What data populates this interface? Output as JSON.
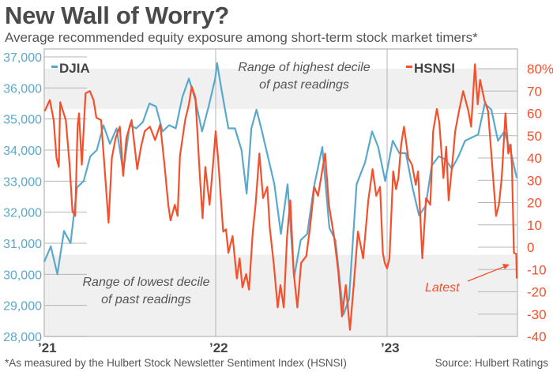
{
  "title": "New Wall of Worry?",
  "subtitle": "Average recommended equity exposure among short-term stock market timers*",
  "footnote": "*As measured by the Hulbert Stock Newsletter Sentiment Index (HSNSI)",
  "source": "Source: Hulbert Ratings",
  "colors": {
    "djia": "#5aa9cc",
    "hsnsi": "#f4502c",
    "band": "#f0f0f0",
    "grid": "#b5b5b5"
  },
  "chart_data": {
    "type": "line",
    "x_ticks": [
      {
        "date": "2021-01-01",
        "label": "’21"
      },
      {
        "date": "2022-01-01",
        "label": "’22"
      },
      {
        "date": "2023-01-01",
        "label": "’23"
      }
    ],
    "x_range": [
      "2021-01-01",
      "2023-10-06"
    ],
    "left_axis": {
      "series": "DJIA",
      "range": [
        28000,
        37000
      ],
      "ticks": [
        {
          "v": 37000,
          "label": "37,000"
        },
        {
          "v": 36000,
          "label": "36,000"
        },
        {
          "v": 35000,
          "label": "35,000"
        },
        {
          "v": 34000,
          "label": "34,000"
        },
        {
          "v": 33000,
          "label": "33,000"
        },
        {
          "v": 32000,
          "label": "32,000"
        },
        {
          "v": 31000,
          "label": "31,000"
        },
        {
          "v": 30000,
          "label": "30,000"
        },
        {
          "v": 29000,
          "label": "29,000"
        },
        {
          "v": 28000,
          "label": "28,000"
        }
      ]
    },
    "right_axis": {
      "series": "HSNSI",
      "range": [
        -40,
        80
      ],
      "ticks": [
        {
          "v": 80,
          "label": "80%"
        },
        {
          "v": 70,
          "label": "70"
        },
        {
          "v": 60,
          "label": "60"
        },
        {
          "v": 50,
          "label": "50"
        },
        {
          "v": 40,
          "label": "40"
        },
        {
          "v": 30,
          "label": "30"
        },
        {
          "v": 20,
          "label": "20"
        },
        {
          "v": 10,
          "label": "10"
        },
        {
          "v": 0,
          "label": "0"
        },
        {
          "v": -10,
          "label": "-10"
        },
        {
          "v": -20,
          "label": "-20"
        },
        {
          "v": -30,
          "label": "-30"
        },
        {
          "v": -40,
          "label": "-40"
        }
      ]
    },
    "bands": [
      {
        "axis": "HSNSI",
        "from": 62,
        "to": 80,
        "label": [
          "Range of highest decile",
          "of past readings"
        ]
      },
      {
        "axis": "HSNSI",
        "from": -40,
        "to": -3.4,
        "label": [
          "Range of lowest decile",
          "of past readings"
        ]
      }
    ],
    "annotation": {
      "text": "Latest",
      "points_to": {
        "date": "2023-10-04",
        "value": -14
      }
    },
    "legend": {
      "placement": "top",
      "items": [
        "DJIA",
        "HSNSI"
      ]
    },
    "series": [
      {
        "name": "DJIA",
        "axis": "left",
        "points": [
          [
            "2021-01-01",
            30400
          ],
          [
            "2021-01-15",
            30900
          ],
          [
            "2021-01-29",
            30000
          ],
          [
            "2021-02-12",
            31400
          ],
          [
            "2021-02-26",
            31000
          ],
          [
            "2021-03-12",
            32800
          ],
          [
            "2021-03-26",
            33000
          ],
          [
            "2021-04-09",
            33800
          ],
          [
            "2021-04-23",
            34000
          ],
          [
            "2021-05-07",
            34800
          ],
          [
            "2021-05-21",
            34200
          ],
          [
            "2021-06-04",
            34700
          ],
          [
            "2021-06-18",
            33300
          ],
          [
            "2021-07-02",
            34800
          ],
          [
            "2021-07-16",
            34700
          ],
          [
            "2021-07-30",
            34900
          ],
          [
            "2021-08-13",
            35500
          ],
          [
            "2021-08-27",
            35400
          ],
          [
            "2021-09-10",
            34600
          ],
          [
            "2021-09-24",
            34800
          ],
          [
            "2021-10-08",
            34700
          ],
          [
            "2021-10-22",
            35700
          ],
          [
            "2021-11-05",
            36300
          ],
          [
            "2021-11-19",
            35600
          ],
          [
            "2021-12-03",
            34600
          ],
          [
            "2021-12-17",
            35400
          ],
          [
            "2021-12-31",
            36300
          ],
          [
            "2022-01-04",
            36800
          ],
          [
            "2022-01-14",
            35900
          ],
          [
            "2022-01-28",
            34700
          ],
          [
            "2022-02-11",
            34700
          ],
          [
            "2022-02-25",
            34000
          ],
          [
            "2022-03-08",
            32600
          ],
          [
            "2022-03-18",
            34700
          ],
          [
            "2022-03-29",
            35300
          ],
          [
            "2022-04-08",
            34700
          ],
          [
            "2022-04-22",
            33800
          ],
          [
            "2022-05-06",
            32900
          ],
          [
            "2022-05-20",
            31300
          ],
          [
            "2022-06-03",
            32900
          ],
          [
            "2022-06-17",
            29900
          ],
          [
            "2022-07-01",
            31100
          ],
          [
            "2022-07-15",
            31300
          ],
          [
            "2022-07-29",
            32800
          ],
          [
            "2022-08-16",
            34100
          ],
          [
            "2022-08-31",
            31500
          ],
          [
            "2022-09-13",
            31100
          ],
          [
            "2022-09-30",
            28700
          ],
          [
            "2022-10-12",
            29200
          ],
          [
            "2022-10-28",
            32900
          ],
          [
            "2022-11-15",
            33600
          ],
          [
            "2022-11-30",
            34600
          ],
          [
            "2022-12-13",
            34100
          ],
          [
            "2022-12-28",
            33000
          ],
          [
            "2023-01-13",
            34300
          ],
          [
            "2023-01-27",
            33900
          ],
          [
            "2023-02-10",
            33900
          ],
          [
            "2023-02-24",
            32800
          ],
          [
            "2023-03-10",
            31900
          ],
          [
            "2023-03-24",
            32200
          ],
          [
            "2023-04-06",
            33500
          ],
          [
            "2023-04-21",
            33800
          ],
          [
            "2023-05-05",
            33700
          ],
          [
            "2023-05-19",
            33400
          ],
          [
            "2023-06-02",
            33800
          ],
          [
            "2023-06-16",
            34300
          ],
          [
            "2023-06-30",
            34400
          ],
          [
            "2023-07-14",
            34500
          ],
          [
            "2023-07-28",
            35500
          ],
          [
            "2023-08-11",
            35300
          ],
          [
            "2023-08-25",
            34300
          ],
          [
            "2023-09-08",
            34600
          ],
          [
            "2023-09-22",
            33900
          ],
          [
            "2023-10-04",
            33100
          ]
        ]
      },
      {
        "name": "HSNSI",
        "axis": "right",
        "points": [
          [
            "2021-01-02",
            61
          ],
          [
            "2021-01-13",
            66
          ],
          [
            "2021-01-21",
            57
          ],
          [
            "2021-01-27",
            40
          ],
          [
            "2021-02-01",
            36
          ],
          [
            "2021-02-04",
            65
          ],
          [
            "2021-02-16",
            57
          ],
          [
            "2021-02-24",
            37
          ],
          [
            "2021-03-02",
            16
          ],
          [
            "2021-03-08",
            14
          ],
          [
            "2021-03-13",
            54
          ],
          [
            "2021-03-16",
            60
          ],
          [
            "2021-03-22",
            37
          ],
          [
            "2021-03-30",
            69
          ],
          [
            "2021-04-08",
            70
          ],
          [
            "2021-04-16",
            66
          ],
          [
            "2021-04-22",
            58
          ],
          [
            "2021-05-02",
            57
          ],
          [
            "2021-05-08",
            40
          ],
          [
            "2021-05-18",
            11
          ],
          [
            "2021-05-25",
            40
          ],
          [
            "2021-06-02",
            49
          ],
          [
            "2021-06-11",
            54
          ],
          [
            "2021-06-18",
            32
          ],
          [
            "2021-06-25",
            49
          ],
          [
            "2021-07-06",
            57
          ],
          [
            "2021-07-18",
            35
          ],
          [
            "2021-07-26",
            45
          ],
          [
            "2021-08-03",
            52
          ],
          [
            "2021-08-14",
            54
          ],
          [
            "2021-08-25",
            48
          ],
          [
            "2021-09-05",
            55
          ],
          [
            "2021-09-14",
            37
          ],
          [
            "2021-09-22",
            19
          ],
          [
            "2021-09-27",
            12
          ],
          [
            "2021-10-06",
            19
          ],
          [
            "2021-10-12",
            14
          ],
          [
            "2021-10-17",
            41
          ],
          [
            "2021-10-28",
            57
          ],
          [
            "2021-11-05",
            64
          ],
          [
            "2021-11-11",
            72
          ],
          [
            "2021-11-19",
            67
          ],
          [
            "2021-11-28",
            33
          ],
          [
            "2021-12-04",
            13
          ],
          [
            "2021-12-10",
            36
          ],
          [
            "2021-12-19",
            19
          ],
          [
            "2021-12-26",
            36
          ],
          [
            "2022-01-01",
            52
          ],
          [
            "2022-01-06",
            40
          ],
          [
            "2022-01-17",
            7
          ],
          [
            "2022-01-23",
            8
          ],
          [
            "2022-01-28",
            -2.5
          ],
          [
            "2022-02-06",
            5
          ],
          [
            "2022-02-15",
            -14
          ],
          [
            "2022-02-21",
            -5
          ],
          [
            "2022-02-27",
            -18
          ],
          [
            "2022-03-07",
            -12
          ],
          [
            "2022-03-13",
            -19
          ],
          [
            "2022-03-21",
            7
          ],
          [
            "2022-03-27",
            19
          ],
          [
            "2022-04-04",
            42
          ],
          [
            "2022-04-12",
            22
          ],
          [
            "2022-04-21",
            27
          ],
          [
            "2022-04-26",
            9
          ],
          [
            "2022-05-05",
            -8
          ],
          [
            "2022-05-13",
            -27
          ],
          [
            "2022-05-19",
            -17
          ],
          [
            "2022-05-26",
            -27
          ],
          [
            "2022-06-02",
            5
          ],
          [
            "2022-06-09",
            21
          ],
          [
            "2022-06-16",
            -11
          ],
          [
            "2022-06-24",
            -27
          ],
          [
            "2022-07-02",
            -7
          ],
          [
            "2022-07-13",
            -4
          ],
          [
            "2022-07-21",
            9
          ],
          [
            "2022-07-30",
            27
          ],
          [
            "2022-08-07",
            23
          ],
          [
            "2022-08-22",
            42
          ],
          [
            "2022-08-30",
            19
          ],
          [
            "2022-09-10",
            5
          ],
          [
            "2022-09-19",
            -11
          ],
          [
            "2022-09-27",
            -31
          ],
          [
            "2022-10-05",
            -17
          ],
          [
            "2022-10-14",
            -37
          ],
          [
            "2022-10-22",
            -17
          ],
          [
            "2022-10-31",
            7
          ],
          [
            "2022-11-11",
            -5
          ],
          [
            "2022-11-22",
            21
          ],
          [
            "2022-12-01",
            35
          ],
          [
            "2022-12-09",
            23
          ],
          [
            "2022-12-17",
            27
          ],
          [
            "2022-12-23",
            -2.5
          ],
          [
            "2022-12-27",
            -7
          ],
          [
            "2023-01-01",
            -9.5
          ],
          [
            "2023-01-06",
            -5
          ],
          [
            "2023-01-14",
            34
          ],
          [
            "2023-01-20",
            26
          ],
          [
            "2023-01-25",
            31
          ],
          [
            "2023-01-31",
            46
          ],
          [
            "2023-02-06",
            54
          ],
          [
            "2023-02-15",
            40
          ],
          [
            "2023-02-23",
            37
          ],
          [
            "2023-03-03",
            28
          ],
          [
            "2023-03-08",
            34
          ],
          [
            "2023-03-17",
            -5
          ],
          [
            "2023-03-25",
            22
          ],
          [
            "2023-04-03",
            19
          ],
          [
            "2023-04-09",
            52
          ],
          [
            "2023-04-17",
            62
          ],
          [
            "2023-04-22",
            56
          ],
          [
            "2023-05-01",
            31
          ],
          [
            "2023-05-07",
            45
          ],
          [
            "2023-05-12",
            21
          ],
          [
            "2023-05-21",
            40
          ],
          [
            "2023-05-26",
            52
          ],
          [
            "2023-06-03",
            61
          ],
          [
            "2023-06-12",
            70
          ],
          [
            "2023-06-23",
            61
          ],
          [
            "2023-06-29",
            54
          ],
          [
            "2023-07-07",
            82
          ],
          [
            "2023-07-13",
            64
          ],
          [
            "2023-07-18",
            75
          ],
          [
            "2023-07-27",
            66
          ],
          [
            "2023-08-04",
            61
          ],
          [
            "2023-08-13",
            36
          ],
          [
            "2023-08-21",
            14
          ],
          [
            "2023-08-27",
            19
          ],
          [
            "2023-09-02",
            31
          ],
          [
            "2023-09-10",
            60
          ],
          [
            "2023-09-16",
            42
          ],
          [
            "2023-09-21",
            46
          ],
          [
            "2023-09-24",
            36
          ],
          [
            "2023-09-28",
            -2.5
          ],
          [
            "2023-10-03",
            -3
          ],
          [
            "2023-10-04",
            -14
          ]
        ]
      }
    ]
  }
}
